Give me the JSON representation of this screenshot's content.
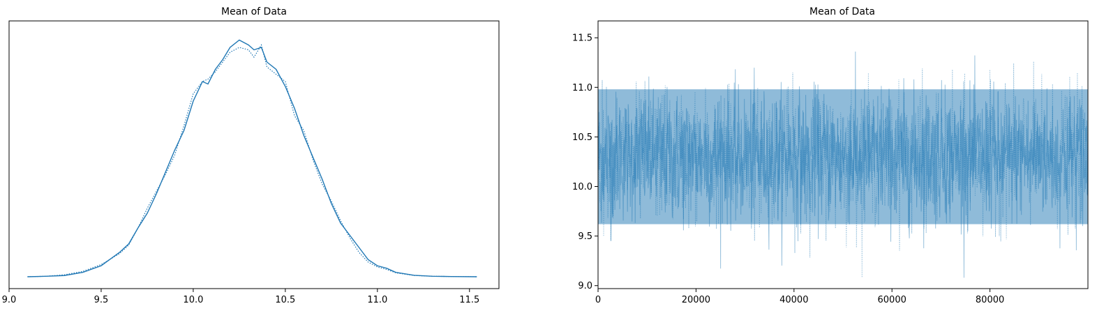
{
  "chart_data": [
    {
      "type": "line",
      "title": "Mean of Data",
      "xlabel": "",
      "ylabel": "",
      "xlim": [
        9.0,
        11.66
      ],
      "ylim": [
        0,
        1.0
      ],
      "y_ticks_visible": false,
      "grid": false,
      "x_ticks": [
        "9.0",
        "9.5",
        "10.0",
        "10.5",
        "11.0",
        "11.5"
      ],
      "x_tick_values": [
        9.0,
        9.5,
        10.0,
        10.5,
        11.0,
        11.5
      ],
      "series": [
        {
          "style": "solid",
          "color": "#1f77b4",
          "x": [
            9.1,
            9.2,
            9.3,
            9.4,
            9.5,
            9.6,
            9.65,
            9.7,
            9.75,
            9.8,
            9.85,
            9.9,
            9.95,
            10.0,
            10.05,
            10.08,
            10.12,
            10.16,
            10.2,
            10.25,
            10.3,
            10.33,
            10.37,
            10.4,
            10.45,
            10.5,
            10.55,
            10.6,
            10.65,
            10.7,
            10.75,
            10.8,
            10.85,
            10.9,
            10.95,
            11.0,
            11.05,
            11.1,
            11.2,
            11.3,
            11.4,
            11.54
          ],
          "y": [
            0.0,
            0.002,
            0.005,
            0.018,
            0.045,
            0.1,
            0.135,
            0.2,
            0.26,
            0.34,
            0.43,
            0.52,
            0.6,
            0.72,
            0.8,
            0.79,
            0.85,
            0.89,
            0.94,
            0.97,
            0.95,
            0.93,
            0.94,
            0.88,
            0.85,
            0.78,
            0.69,
            0.58,
            0.49,
            0.4,
            0.3,
            0.22,
            0.17,
            0.12,
            0.07,
            0.045,
            0.035,
            0.018,
            0.006,
            0.002,
            0.001,
            0.0
          ]
        },
        {
          "style": "dotted",
          "color": "#1f77b4",
          "x": [
            9.1,
            9.2,
            9.3,
            9.4,
            9.5,
            9.6,
            9.65,
            9.7,
            9.75,
            9.8,
            9.85,
            9.9,
            9.95,
            10.0,
            10.05,
            10.08,
            10.12,
            10.16,
            10.2,
            10.25,
            10.3,
            10.33,
            10.37,
            10.4,
            10.45,
            10.5,
            10.55,
            10.6,
            10.65,
            10.7,
            10.75,
            10.8,
            10.85,
            10.9,
            10.95,
            11.0,
            11.05,
            11.1,
            11.2,
            11.3,
            11.4,
            11.54
          ],
          "y": [
            0.0,
            0.002,
            0.008,
            0.022,
            0.05,
            0.095,
            0.13,
            0.2,
            0.28,
            0.35,
            0.42,
            0.5,
            0.62,
            0.75,
            0.8,
            0.81,
            0.84,
            0.88,
            0.92,
            0.94,
            0.93,
            0.9,
            0.95,
            0.86,
            0.83,
            0.8,
            0.66,
            0.6,
            0.48,
            0.38,
            0.31,
            0.23,
            0.16,
            0.1,
            0.06,
            0.04,
            0.03,
            0.016,
            0.005,
            0.002,
            0.001,
            0.0
          ]
        }
      ]
    },
    {
      "type": "line",
      "title": "Mean of Data",
      "xlabel": "",
      "ylabel": "",
      "xlim": [
        0,
        100000
      ],
      "ylim": [
        8.97,
        11.67
      ],
      "grid": false,
      "x_ticks": [
        "0",
        "20000",
        "40000",
        "60000",
        "80000"
      ],
      "x_tick_values": [
        0,
        20000,
        40000,
        60000,
        80000
      ],
      "y_ticks": [
        "9.0",
        "9.5",
        "10.0",
        "10.5",
        "11.0",
        "11.5"
      ],
      "y_tick_values": [
        9.0,
        9.5,
        10.0,
        10.5,
        11.0,
        11.5
      ],
      "trace": {
        "n_draws": 100000,
        "mean": 10.3,
        "band_low": 9.62,
        "band_high": 10.98,
        "min": 9.08,
        "max": 11.55,
        "color": "#1f77b4",
        "alpha": 0.5
      }
    }
  ]
}
